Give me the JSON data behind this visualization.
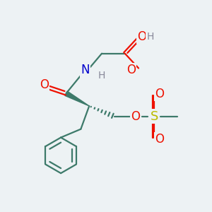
{
  "bg_color": "#edf2f4",
  "bond_color": "#3d7a6a",
  "atom_colors": {
    "O": "#ee1100",
    "N": "#0000cc",
    "S": "#bbbb00",
    "H_gray": "#888899",
    "C": "#3d7a6a"
  },
  "font_size": 10,
  "fig_size": [
    3.0,
    3.0
  ],
  "dpi": 100,
  "lw": 1.6
}
